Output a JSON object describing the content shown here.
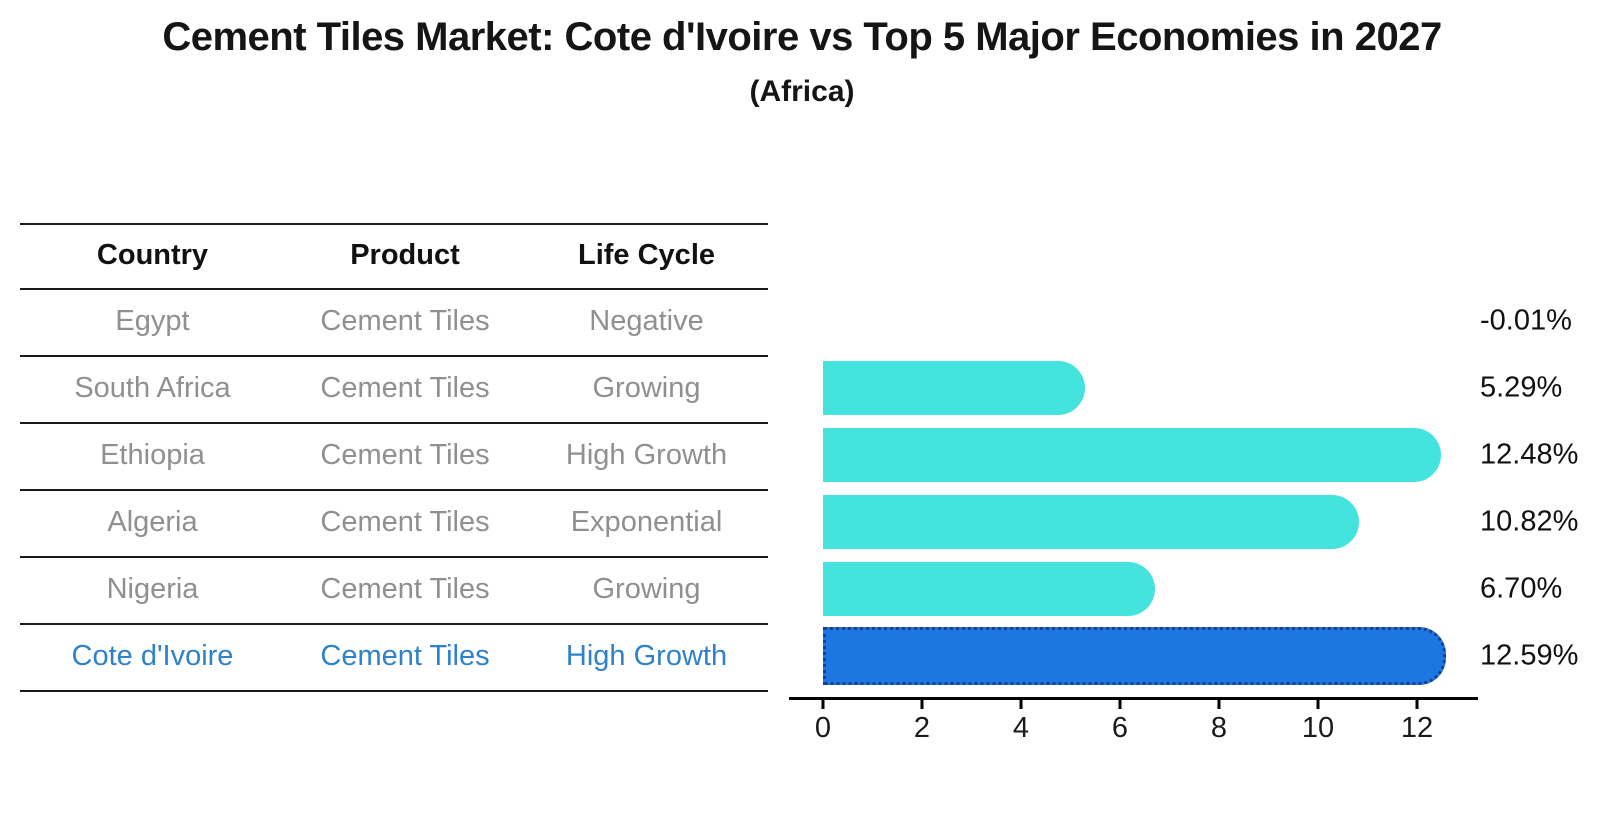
{
  "page": {
    "title": "Cement Tiles Market: Cote d'Ivoire vs Top 5 Major Economies in 2027",
    "subtitle": "(Africa)"
  },
  "table": {
    "headers": [
      "Country",
      "Product",
      "Life Cycle"
    ],
    "rows": [
      {
        "country": "Egypt",
        "product": "Cement Tiles",
        "life_cycle": "Negative",
        "highlight": false
      },
      {
        "country": "South Africa",
        "product": "Cement Tiles",
        "life_cycle": "Growing",
        "highlight": false
      },
      {
        "country": "Ethiopia",
        "product": "Cement Tiles",
        "life_cycle": "High Growth",
        "highlight": false
      },
      {
        "country": "Algeria",
        "product": "Cement Tiles",
        "life_cycle": "Exponential",
        "highlight": false
      },
      {
        "country": "Nigeria",
        "product": "Cement Tiles",
        "life_cycle": "Growing",
        "highlight": false
      },
      {
        "country": "Cote d'Ivoire",
        "product": "Cement Tiles",
        "life_cycle": "High Growth",
        "highlight": true
      }
    ]
  },
  "chart_data": {
    "type": "bar",
    "orientation": "horizontal",
    "title": "Cement Tiles Market: Cote d'Ivoire vs Top 5 Major Economies in 2027",
    "subtitle": "(Africa)",
    "categories": [
      "Egypt",
      "South Africa",
      "Ethiopia",
      "Algeria",
      "Nigeria",
      "Cote d'Ivoire"
    ],
    "values": [
      -0.01,
      5.29,
      12.48,
      10.82,
      6.7,
      12.59
    ],
    "value_labels": [
      "-0.01%",
      "5.29%",
      "12.48%",
      "10.82%",
      "6.70%",
      "12.59%"
    ],
    "xlabel": "",
    "ylabel": "",
    "xticks": [
      0,
      2,
      4,
      6,
      8,
      10,
      12
    ],
    "xtick_labels": [
      "0",
      "2",
      "4",
      "6",
      "8",
      "10",
      "12"
    ],
    "xlim": [
      -0.7,
      13.9
    ],
    "grid": false,
    "legend": false,
    "highlight_index": 5
  },
  "colors": {
    "bar": "#44e3de",
    "highlight_bar": "#1e76e2",
    "highlight_border": "#16418f",
    "row_text": "#8e9091",
    "header_text": "#111111",
    "highlight_text": "#2e82cc",
    "value_text": "#111111",
    "axis": "#000000",
    "background": "#ffffff"
  }
}
